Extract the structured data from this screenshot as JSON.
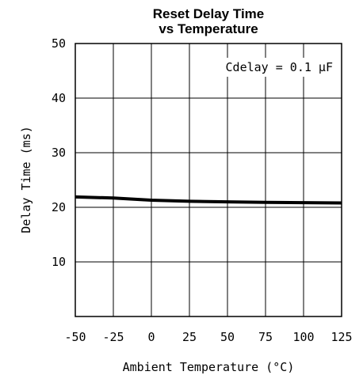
{
  "chart_data": {
    "type": "line",
    "title_lines": [
      "Reset Delay Time",
      "vs Temperature"
    ],
    "xlabel": "Ambient Temperature (°C)",
    "ylabel": "Delay Time (ms)",
    "xlim": [
      -50,
      125
    ],
    "ylim": [
      0,
      50
    ],
    "xticks": [
      -50,
      -25,
      0,
      25,
      50,
      75,
      100,
      125
    ],
    "yticks": [
      10,
      20,
      30,
      40,
      50
    ],
    "grid": true,
    "annotation": {
      "text": "Cdelay = 0.1 μF",
      "position": "top-right"
    },
    "series": [
      {
        "x": [
          -50,
          -25,
          0,
          25,
          50,
          75,
          100,
          125
        ],
        "y": [
          21.9,
          21.7,
          21.3,
          21.1,
          21.0,
          20.9,
          20.85,
          20.8
        ]
      }
    ]
  }
}
